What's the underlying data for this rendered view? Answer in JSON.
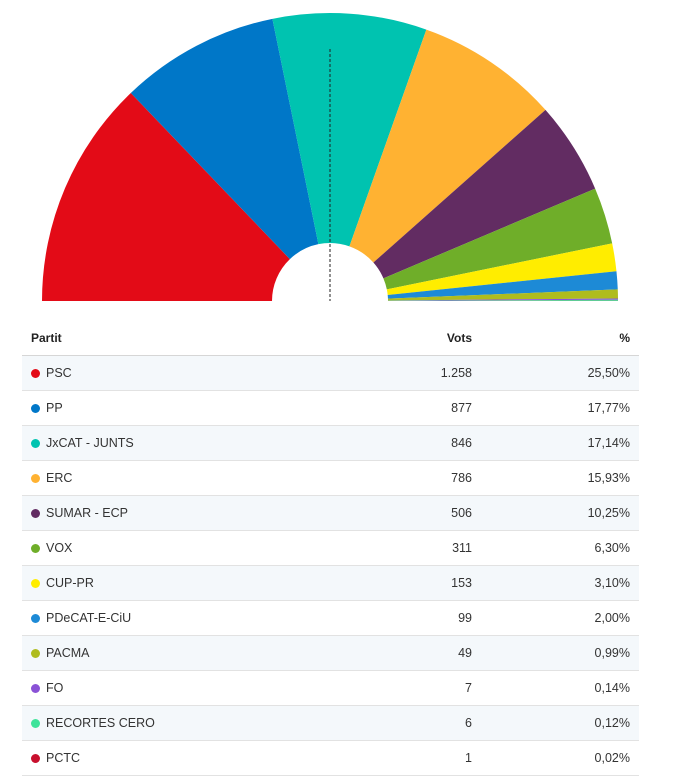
{
  "table": {
    "headers": {
      "party": "Partit",
      "votes": "Vots",
      "percent": "%"
    }
  },
  "chart_data": {
    "type": "pie",
    "subtype": "semicircle",
    "series": [
      {
        "name": "PSC",
        "votes": "1.258",
        "percent": "25,50%",
        "value": 25.5,
        "color": "#e30b17"
      },
      {
        "name": "PP",
        "votes": "877",
        "percent": "17,77%",
        "value": 17.77,
        "color": "#0077c8"
      },
      {
        "name": "JxCAT - JUNTS",
        "votes": "846",
        "percent": "17,14%",
        "value": 17.14,
        "color": "#00c3b0"
      },
      {
        "name": "ERC",
        "votes": "786",
        "percent": "15,93%",
        "value": 15.93,
        "color": "#ffb232"
      },
      {
        "name": "SUMAR - ECP",
        "votes": "506",
        "percent": "10,25%",
        "value": 10.25,
        "color": "#622c62"
      },
      {
        "name": "VOX",
        "votes": "311",
        "percent": "6,30%",
        "value": 6.3,
        "color": "#6fae29"
      },
      {
        "name": "CUP-PR",
        "votes": "153",
        "percent": "3,10%",
        "value": 3.1,
        "color": "#ffed00"
      },
      {
        "name": "PDeCAT-E-CiU",
        "votes": "99",
        "percent": "2,00%",
        "value": 2.0,
        "color": "#1d8ad6"
      },
      {
        "name": "PACMA",
        "votes": "49",
        "percent": "0,99%",
        "value": 0.99,
        "color": "#afbc1e"
      },
      {
        "name": "FO",
        "votes": "7",
        "percent": "0,14%",
        "value": 0.14,
        "color": "#8a52d6"
      },
      {
        "name": "RECORTES CERO",
        "votes": "6",
        "percent": "0,12%",
        "value": 0.12,
        "color": "#3ee39a"
      },
      {
        "name": "PCTC",
        "votes": "1",
        "percent": "0,02%",
        "value": 0.02,
        "color": "#c8102e"
      }
    ],
    "majority_line": true
  }
}
